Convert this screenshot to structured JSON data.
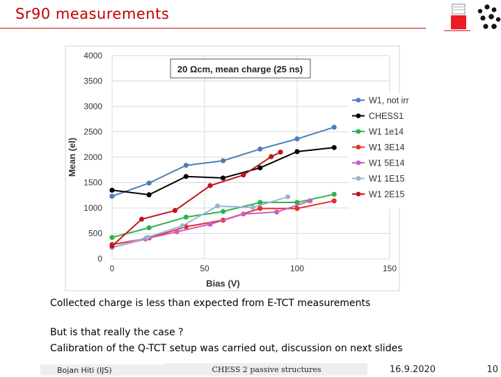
{
  "slide": {
    "title": "Sr90 measurements",
    "note1": "Collected charge is less than expected from E-TCT measurements",
    "note2": "But is that really the case ?",
    "note3": "Calibration of the Q-TCT setup was carried out, discussion on next slides"
  },
  "footer": {
    "author": "Bojan Hiti (IJS)",
    "topic": "CHESS 2 passive structures",
    "date": "16.9.2020",
    "page": "10"
  },
  "colors": {
    "title": "#c00000",
    "logo_red": "#ee1c25"
  },
  "chart_data": {
    "type": "line",
    "title": "20 Ωcm, mean charge (25 ns)",
    "xlabel": "Bias (V)",
    "ylabel": "Mean (el)",
    "xlim": [
      0,
      150
    ],
    "ylim": [
      0,
      4000
    ],
    "xticks": [
      0,
      50,
      100,
      150
    ],
    "yticks": [
      0,
      500,
      1000,
      1500,
      2000,
      2500,
      3000,
      3500,
      4000
    ],
    "grid": true,
    "legend_position": "right",
    "series": [
      {
        "name": "W1, not irr",
        "color": "#4a7ebb",
        "x": [
          0,
          20,
          40,
          60,
          80,
          100,
          120
        ],
        "y": [
          1230,
          1490,
          1840,
          1930,
          2160,
          2360,
          2590
        ]
      },
      {
        "name": "CHESS1",
        "color": "#000000",
        "x": [
          0,
          20,
          40,
          60,
          80,
          100,
          120
        ],
        "y": [
          1350,
          1260,
          1620,
          1590,
          1790,
          2110,
          2190
        ]
      },
      {
        "name": "W1 1e14",
        "color": "#2db34a",
        "x": [
          0,
          20,
          40,
          60,
          80,
          100,
          120
        ],
        "y": [
          420,
          610,
          820,
          930,
          1110,
          1110,
          1270
        ]
      },
      {
        "name": "W1 3E14",
        "color": "#e0312b",
        "x": [
          0,
          20,
          40,
          60,
          80,
          100,
          120
        ],
        "y": [
          280,
          410,
          630,
          760,
          990,
          990,
          1140
        ]
      },
      {
        "name": "W1 5E14",
        "color": "#cc5cc3",
        "x": [
          0,
          18,
          35,
          53,
          71,
          89,
          107
        ],
        "y": [
          220,
          390,
          530,
          680,
          880,
          920,
          1140
        ]
      },
      {
        "name": "W1 1E15",
        "color": "#9db3d4",
        "x": [
          0,
          19,
          38,
          57,
          76,
          95
        ],
        "y": [
          220,
          420,
          650,
          1040,
          1010,
          1220
        ]
      },
      {
        "name": "W1 2E15",
        "color": "#c0151b",
        "x": [
          0,
          16,
          34,
          53,
          71,
          86,
          91
        ],
        "y": [
          250,
          780,
          950,
          1440,
          1650,
          2010,
          2100
        ]
      }
    ]
  }
}
